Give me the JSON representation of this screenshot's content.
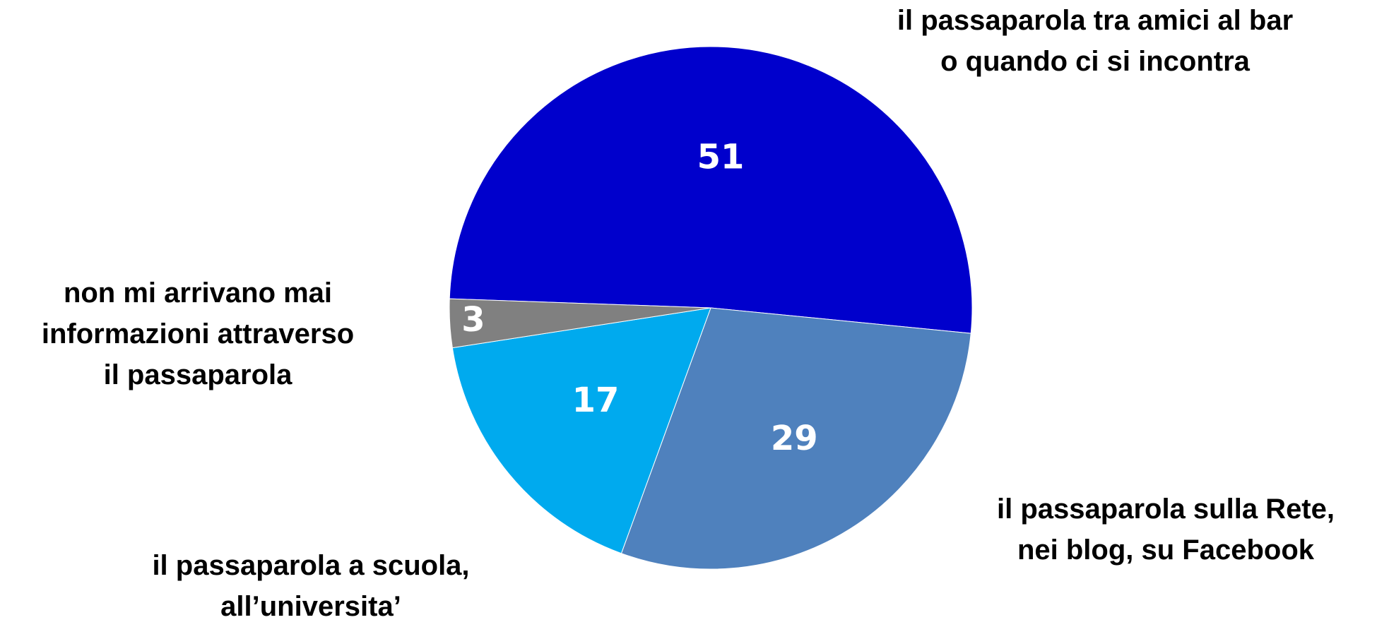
{
  "chart_data": {
    "type": "pie",
    "title": "",
    "slices": [
      {
        "label": "il passaparola tra amici al bar\no quando ci si incontra",
        "value": 51,
        "color": "#0000CC"
      },
      {
        "label": "il passaparola sulla Rete,\nnei blog, su Facebook",
        "value": 29,
        "color": "#4F81BD"
      },
      {
        "label": "il passaparola a scuola,\nall’universita’",
        "value": 17,
        "color": "#00AAEE"
      },
      {
        "label": "non mi arrivano mai\ninformazioni attraverso\nil passaparola",
        "value": 3,
        "color": "#808080"
      }
    ],
    "legend": "none"
  }
}
